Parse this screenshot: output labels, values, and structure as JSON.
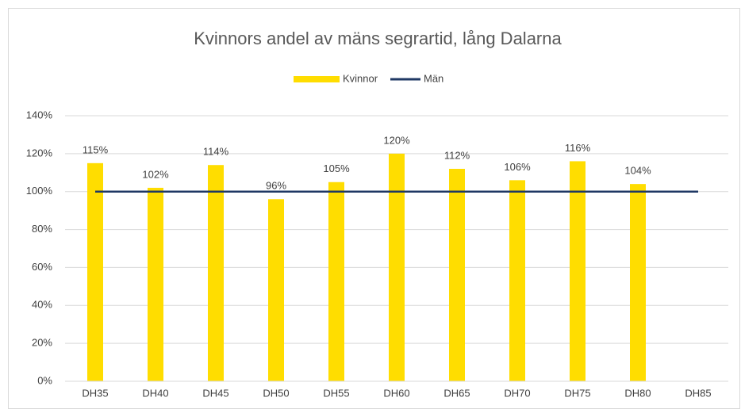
{
  "chart_data": {
    "type": "bar",
    "title": "Kvinnors andel av mäns segrartid, lång Dalarna",
    "categories": [
      "DH35",
      "DH40",
      "DH45",
      "DH50",
      "DH55",
      "DH60",
      "DH65",
      "DH70",
      "DH75",
      "DH80",
      "DH85"
    ],
    "series": [
      {
        "name": "Kvinnor",
        "type": "bar",
        "color": "#FFDD00",
        "values": [
          115,
          102,
          114,
          96,
          105,
          120,
          112,
          106,
          116,
          104,
          null
        ],
        "value_labels": [
          "115%",
          "102%",
          "114%",
          "96%",
          "105%",
          "120%",
          "112%",
          "106%",
          "116%",
          "104%",
          null
        ]
      },
      {
        "name": "Män",
        "type": "line",
        "color": "#1F3864",
        "values": [
          100,
          100,
          100,
          100,
          100,
          100,
          100,
          100,
          100,
          100,
          100
        ]
      }
    ],
    "ylim": [
      0,
      140
    ],
    "yticks": [
      {
        "value": 0,
        "label": "0%"
      },
      {
        "value": 20,
        "label": "20%"
      },
      {
        "value": 40,
        "label": "40%"
      },
      {
        "value": 60,
        "label": "60%"
      },
      {
        "value": 80,
        "label": "80%"
      },
      {
        "value": 100,
        "label": "100%"
      },
      {
        "value": 120,
        "label": "120%"
      },
      {
        "value": 140,
        "label": "140%"
      }
    ],
    "grid": true,
    "legend": "top"
  }
}
